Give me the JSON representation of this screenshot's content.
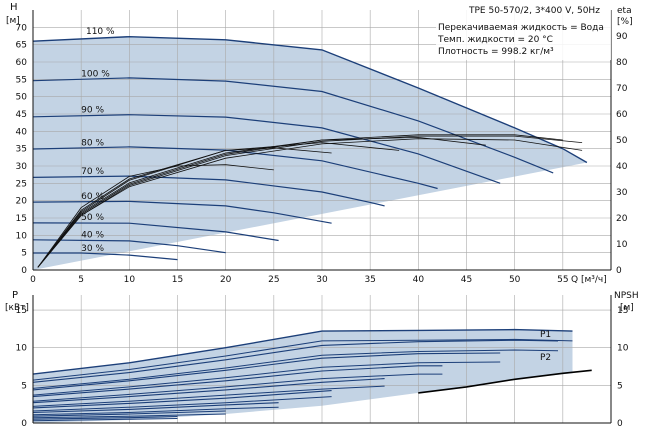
{
  "chart_data": [
    {
      "type": "line",
      "title": "TPE 50-570/2, 3*400 V, 50Hz",
      "info_lines": [
        "Перекачиваемая жидкость = Вода",
        "Темп. жидкости = 20 °C",
        "Плотность = 998.2 кг/м³"
      ],
      "ylabel": "H",
      "ylabel_unit": "[м]",
      "y2label": "eta",
      "y2label_unit": "[%]",
      "xlabel": "Q [м³/ч]",
      "xlim": [
        0,
        60
      ],
      "ylim": [
        0,
        75
      ],
      "y2lim": [
        0,
        100
      ],
      "x_ticks": [
        0,
        5,
        10,
        15,
        20,
        25,
        30,
        35,
        40,
        45,
        50,
        55
      ],
      "y_ticks": [
        0,
        5,
        10,
        15,
        20,
        25,
        30,
        35,
        40,
        45,
        50,
        55,
        60,
        65,
        70
      ],
      "y2_ticks": [
        0,
        10,
        20,
        30,
        40,
        50,
        60,
        70,
        80,
        90
      ],
      "grid": true,
      "colors": {
        "curve": "#1c3f79",
        "envelope": "#c3d3e4",
        "eta": "#111111"
      },
      "envelope": {
        "top": [
          [
            0,
            66
          ],
          [
            10,
            67.3
          ],
          [
            20,
            66.4
          ],
          [
            30,
            63.5
          ],
          [
            40,
            52.5
          ],
          [
            50,
            41
          ],
          [
            55,
            35
          ],
          [
            57.5,
            31
          ]
        ],
        "bottom": [
          [
            0,
            0
          ],
          [
            57.5,
            31
          ]
        ]
      },
      "speed_curves": [
        {
          "label": "110 %",
          "label_at": [
            5.5,
            67.5
          ],
          "points": [
            [
              0,
              66
            ],
            [
              10,
              67.3
            ],
            [
              20,
              66.4
            ],
            [
              30,
              63.5
            ],
            [
              40,
              52.5
            ],
            [
              50,
              41
            ],
            [
              55,
              35
            ],
            [
              57.5,
              31
            ]
          ]
        },
        {
          "label": "100 %",
          "label_at": [
            5,
            55.3
          ],
          "points": [
            [
              0,
              54.6
            ],
            [
              10,
              55.4
            ],
            [
              20,
              54.5
            ],
            [
              30,
              51.5
            ],
            [
              40,
              43
            ],
            [
              50,
              32.5
            ],
            [
              54,
              28
            ]
          ]
        },
        {
          "label": "90 %",
          "label_at": [
            5,
            44.8
          ],
          "points": [
            [
              0,
              44.2
            ],
            [
              10,
              44.8
            ],
            [
              20,
              44.1
            ],
            [
              30,
              41
            ],
            [
              40,
              33.5
            ],
            [
              48.5,
              25
            ]
          ]
        },
        {
          "label": "80 %",
          "label_at": [
            5,
            35.4
          ],
          "points": [
            [
              0,
              34.9
            ],
            [
              10,
              35.5
            ],
            [
              20,
              34.6
            ],
            [
              30,
              31.5
            ],
            [
              40,
              25
            ],
            [
              42,
              23.5
            ]
          ]
        },
        {
          "label": "70 %",
          "label_at": [
            5,
            27.1
          ],
          "points": [
            [
              0,
              26.7
            ],
            [
              10,
              27.1
            ],
            [
              20,
              26
            ],
            [
              30,
              22.5
            ],
            [
              35,
              19.5
            ],
            [
              36.5,
              18.5
            ]
          ]
        },
        {
          "label": "60 %",
          "label_at": [
            5,
            19.9
          ],
          "points": [
            [
              0,
              19.6
            ],
            [
              10,
              19.8
            ],
            [
              20,
              18.5
            ],
            [
              25,
              16.5
            ],
            [
              31,
              13.5
            ]
          ]
        },
        {
          "label": "50 %",
          "label_at": [
            5,
            13.8
          ],
          "points": [
            [
              0,
              13.6
            ],
            [
              10,
              13.5
            ],
            [
              20,
              11
            ],
            [
              25.5,
              8.5
            ]
          ]
        },
        {
          "label": "40 %",
          "label_at": [
            5,
            8.8
          ],
          "points": [
            [
              0,
              8.7
            ],
            [
              10,
              8.4
            ],
            [
              15,
              7
            ],
            [
              20,
              5
            ]
          ]
        },
        {
          "label": "30 %",
          "label_at": [
            5,
            4.9
          ],
          "points": [
            [
              0,
              4.9
            ],
            [
              5,
              4.9
            ],
            [
              10,
              4.3
            ],
            [
              15,
              3
            ]
          ]
        }
      ],
      "eta_curves": [
        {
          "points": [
            [
              0.5,
              1
            ],
            [
              5,
              21
            ],
            [
              10,
              32
            ],
            [
              20,
              43
            ],
            [
              30,
              48.5
            ],
            [
              40,
              50.5
            ],
            [
              50,
              50
            ],
            [
              57,
              46
            ]
          ]
        },
        {
          "points": [
            [
              0.5,
              1
            ],
            [
              5,
              21
            ],
            [
              10,
              32.5
            ],
            [
              20,
              44
            ],
            [
              30,
              49.5
            ],
            [
              40,
              51.5
            ],
            [
              50,
              51.5
            ],
            [
              57,
              49
            ]
          ]
        },
        {
          "points": [
            [
              0.5,
              1
            ],
            [
              5,
              21.5
            ],
            [
              10,
              33
            ],
            [
              20,
              44.5
            ],
            [
              30,
              50
            ],
            [
              40,
              52
            ],
            [
              50,
              52
            ],
            [
              55,
              50
            ]
          ]
        },
        {
          "points": [
            [
              0.5,
              1
            ],
            [
              5,
              22
            ],
            [
              10,
              33.5
            ],
            [
              20,
              45
            ],
            [
              30,
              50
            ],
            [
              40,
              51
            ],
            [
              47,
              48
            ]
          ]
        },
        {
          "points": [
            [
              0.5,
              1
            ],
            [
              5,
              22.5
            ],
            [
              10,
              34.5
            ],
            [
              20,
              46
            ],
            [
              30,
              49
            ],
            [
              38,
              46
            ]
          ]
        },
        {
          "points": [
            [
              0.5,
              1
            ],
            [
              5,
              23
            ],
            [
              10,
              35
            ],
            [
              20,
              46
            ],
            [
              25,
              47
            ],
            [
              31,
              45
            ]
          ]
        },
        {
          "points": [
            [
              0.5,
              1
            ],
            [
              5,
              24
            ],
            [
              10,
              36
            ],
            [
              15,
              40
            ],
            [
              20,
              40.5
            ],
            [
              25,
              38.5
            ]
          ]
        }
      ]
    },
    {
      "type": "line",
      "ylabel": "P",
      "ylabel_unit": "[кВт]",
      "y2label": "NPSH",
      "y2label_unit": "[м]",
      "xlim": [
        0,
        60
      ],
      "ylim": [
        0,
        17
      ],
      "y2lim": [
        0,
        17
      ],
      "y_ticks": [
        0,
        5,
        10,
        15
      ],
      "y2_ticks": [
        0,
        5,
        10,
        15
      ],
      "grid": true,
      "series_labels": [
        "P1",
        "P2"
      ],
      "envelope": {
        "top": [
          [
            0,
            6.5
          ],
          [
            10,
            8
          ],
          [
            20,
            10
          ],
          [
            30,
            12.2
          ],
          [
            40,
            12.3
          ],
          [
            50,
            12.4
          ],
          [
            56,
            12.2
          ]
        ],
        "bottom": [
          [
            0,
            0
          ],
          [
            10,
            0.4
          ],
          [
            20,
            1.2
          ],
          [
            30,
            2.3
          ],
          [
            40,
            4
          ],
          [
            50,
            5.8
          ],
          [
            56,
            6.6
          ]
        ]
      },
      "p1_curves": [
        {
          "points": [
            [
              0,
              6.5
            ],
            [
              10,
              8
            ],
            [
              20,
              10
            ],
            [
              30,
              12.2
            ],
            [
              40,
              12.3
            ],
            [
              50,
              12.4
            ],
            [
              56,
              12.2
            ]
          ]
        },
        {
          "points": [
            [
              0,
              5.4
            ],
            [
              10,
              6.7
            ],
            [
              20,
              8.4
            ],
            [
              30,
              10.3
            ],
            [
              40,
              10.8
            ],
            [
              50,
              11
            ],
            [
              54.5,
              10.9
            ]
          ]
        },
        {
          "points": [
            [
              0,
              4.4
            ],
            [
              10,
              5.6
            ],
            [
              20,
              7
            ],
            [
              30,
              8.6
            ],
            [
              40,
              9.2
            ],
            [
              48.5,
              9.3
            ]
          ]
        },
        {
          "points": [
            [
              0,
              3.5
            ],
            [
              10,
              4.5
            ],
            [
              20,
              5.6
            ],
            [
              30,
              6.9
            ],
            [
              40,
              7.6
            ],
            [
              42.5,
              7.6
            ]
          ]
        },
        {
          "points": [
            [
              0,
              2.7
            ],
            [
              10,
              3.5
            ],
            [
              20,
              4.4
            ],
            [
              30,
              5.4
            ],
            [
              36.5,
              5.9
            ]
          ]
        },
        {
          "points": [
            [
              0,
              2
            ],
            [
              10,
              2.6
            ],
            [
              20,
              3.3
            ],
            [
              31,
              4.3
            ]
          ]
        },
        {
          "points": [
            [
              0,
              1.4
            ],
            [
              10,
              1.8
            ],
            [
              20,
              2.4
            ],
            [
              25.5,
              2.7
            ]
          ]
        },
        {
          "points": [
            [
              0,
              0.9
            ],
            [
              10,
              1.2
            ],
            [
              20,
              1.6
            ]
          ]
        },
        {
          "points": [
            [
              0,
              0.5
            ],
            [
              10,
              0.7
            ],
            [
              15,
              0.85
            ]
          ]
        }
      ],
      "p2_curves": [
        {
          "points": [
            [
              0,
              5.7
            ],
            [
              10,
              7.1
            ],
            [
              20,
              8.9
            ],
            [
              30,
              10.9
            ],
            [
              40,
              11
            ],
            [
              50,
              11.1
            ],
            [
              56,
              10.9
            ]
          ]
        },
        {
          "points": [
            [
              0,
              4.6
            ],
            [
              10,
              5.8
            ],
            [
              20,
              7.3
            ],
            [
              30,
              9
            ],
            [
              40,
              9.5
            ],
            [
              50,
              9.7
            ],
            [
              54.5,
              9.6
            ]
          ]
        },
        {
          "points": [
            [
              0,
              3.7
            ],
            [
              10,
              4.8
            ],
            [
              20,
              6
            ],
            [
              30,
              7.4
            ],
            [
              40,
              8
            ],
            [
              48.5,
              8.1
            ]
          ]
        },
        {
          "points": [
            [
              0,
              2.9
            ],
            [
              10,
              3.8
            ],
            [
              20,
              4.8
            ],
            [
              30,
              5.9
            ],
            [
              40,
              6.5
            ],
            [
              42.5,
              6.5
            ]
          ]
        },
        {
          "points": [
            [
              0,
              2.2
            ],
            [
              10,
              2.9
            ],
            [
              20,
              3.7
            ],
            [
              30,
              4.5
            ],
            [
              36.5,
              4.9
            ]
          ]
        },
        {
          "points": [
            [
              0,
              1.6
            ],
            [
              10,
              2.1
            ],
            [
              20,
              2.7
            ],
            [
              31,
              3.5
            ]
          ]
        },
        {
          "points": [
            [
              0,
              1.1
            ],
            [
              10,
              1.4
            ],
            [
              20,
              1.9
            ],
            [
              25.5,
              2.1
            ]
          ]
        },
        {
          "points": [
            [
              0,
              0.7
            ],
            [
              10,
              0.9
            ],
            [
              20,
              1.2
            ]
          ]
        },
        {
          "points": [
            [
              0,
              0.3
            ],
            [
              10,
              0.5
            ],
            [
              15,
              0.6
            ]
          ]
        }
      ],
      "npsh_curve": {
        "points": [
          [
            40,
            4
          ],
          [
            45,
            4.8
          ],
          [
            50,
            5.8
          ],
          [
            55,
            6.6
          ],
          [
            58,
            7
          ]
        ]
      }
    }
  ]
}
